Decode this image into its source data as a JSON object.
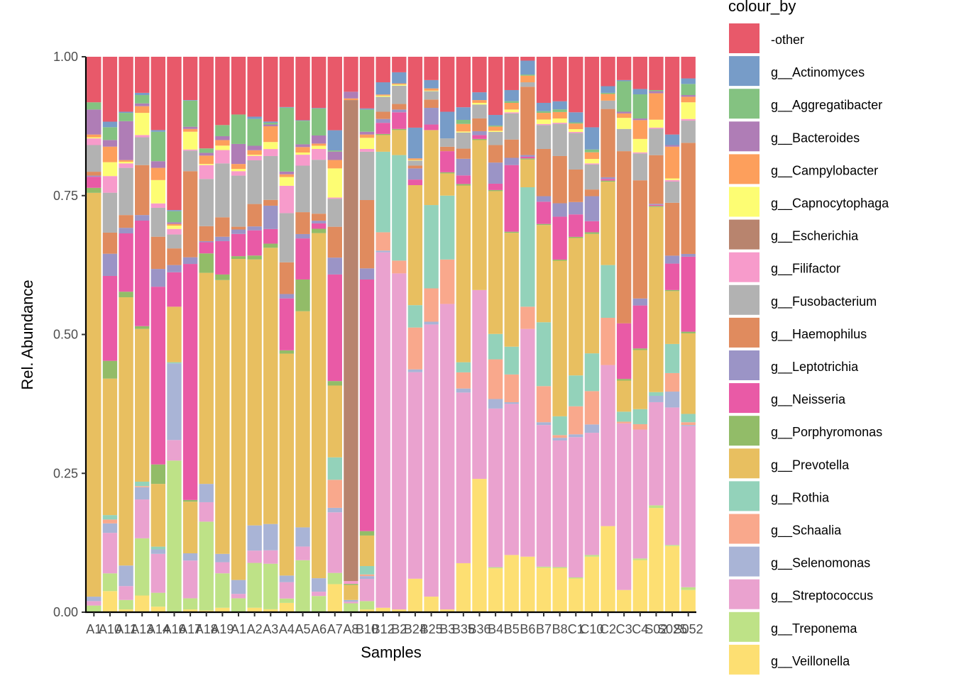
{
  "chart_data": {
    "type": "bar",
    "stacked": true,
    "xlabel": "Samples",
    "ylabel": "Rel. Abundance",
    "ylim": [
      0,
      1
    ],
    "yticks": [
      "0.00",
      "0.25",
      "0.50",
      "0.75",
      "1.00"
    ],
    "ytick_values": [
      0,
      0.25,
      0.5,
      0.75,
      1.0
    ],
    "legend": {
      "title": "colour_by",
      "placement": "right",
      "entries": [
        {
          "key": "O",
          "label": "-other",
          "color": "#E8596A"
        },
        {
          "key": "Ac",
          "label": "g__Actinomyces",
          "color": "#779CC8"
        },
        {
          "key": "Ag",
          "label": "g__Aggregatibacter",
          "color": "#84C281"
        },
        {
          "key": "B",
          "label": "g__Bacteroides",
          "color": "#AF7DB6"
        },
        {
          "key": "Cp",
          "label": "g__Campylobacter",
          "color": "#FD9F5C"
        },
        {
          "key": "Ca",
          "label": "g__Capnocytophaga",
          "color": "#FDFD73"
        },
        {
          "key": "E",
          "label": "g__Escherichia",
          "color": "#B8846E"
        },
        {
          "key": "Fi",
          "label": "g__Filifactor",
          "color": "#F79BCB"
        },
        {
          "key": "F",
          "label": "g__Fusobacterium",
          "color": "#B2B2B2"
        },
        {
          "key": "H",
          "label": "g__Haemophilus",
          "color": "#E08B5E"
        },
        {
          "key": "L",
          "label": "g__Leptotrichia",
          "color": "#9B94C6"
        },
        {
          "key": "N",
          "label": "g__Neisseria",
          "color": "#E95AA6"
        },
        {
          "key": "Po",
          "label": "g__Porphyromonas",
          "color": "#92BC68"
        },
        {
          "key": "P",
          "label": "g__Prevotella",
          "color": "#E8BF60"
        },
        {
          "key": "R",
          "label": "g__Rothia",
          "color": "#93D2BA"
        },
        {
          "key": "Sc",
          "label": "g__Schaalia",
          "color": "#F9A88C"
        },
        {
          "key": "Se",
          "label": "g__Selenomonas",
          "color": "#A9B4D6"
        },
        {
          "key": "St",
          "label": "g__Streptococcus",
          "color": "#EAA2CF"
        },
        {
          "key": "T",
          "label": "g__Treponema",
          "color": "#BEE287"
        },
        {
          "key": "V",
          "label": "g__Veillonella",
          "color": "#FDDF72"
        }
      ]
    },
    "stack_order_bottom_to_top": [
      "V",
      "T",
      "St",
      "Se",
      "Sc",
      "R",
      "P",
      "Po",
      "N",
      "L",
      "H",
      "F",
      "Fi",
      "E",
      "Ca",
      "Cp",
      "B",
      "Ag",
      "Ac",
      "O"
    ],
    "categories": [
      "A1",
      "A10",
      "A11",
      "A13",
      "A14",
      "A16",
      "A17",
      "A18",
      "A19",
      "A1",
      "A2",
      "A3",
      "A4",
      "A5",
      "A6",
      "A7",
      "A8",
      "B10",
      "B12",
      "B2",
      "B24",
      "B25",
      "B3",
      "B35",
      "B36",
      "B4",
      "B5",
      "B6",
      "B7",
      "B8",
      "C1",
      "C10",
      "C2",
      "C3",
      "C4",
      "S02",
      "S025",
      "S052"
    ],
    "series_values": [
      {
        "V": 0,
        "T": 0.012,
        "St": 0.008,
        "Se": 0.008,
        "Sc": 0,
        "R": 0,
        "P": 0.727,
        "Po": 0.009,
        "N": 0.02,
        "L": 0.002,
        "H": 0.007,
        "F": 0.048,
        "Fi": 0.012,
        "E": 0,
        "Ca": 0.002,
        "Cp": 0.005,
        "B": 0.045,
        "Ag": 0.013,
        "Ac": 0,
        "O": 0.082
      },
      {
        "V": 0.038,
        "T": 0.032,
        "St": 0.073,
        "Se": 0.017,
        "Sc": 0.007,
        "R": 0.008,
        "P": 0.246,
        "Po": 0.032,
        "N": 0.153,
        "L": 0.04,
        "H": 0.038,
        "F": 0.072,
        "Fi": 0.03,
        "E": 0,
        "Ca": 0.025,
        "Cp": 0.028,
        "B": 0.012,
        "Ag": 0.023,
        "Ac": 0.01,
        "O": 0.117
      },
      {
        "V": 0.005,
        "T": 0.017,
        "St": 0.025,
        "Se": 0.037,
        "Sc": 0,
        "R": 0,
        "P": 0.483,
        "Po": 0.01,
        "N": 0.105,
        "L": 0.01,
        "H": 0.023,
        "F": 0.085,
        "Fi": 0.008,
        "E": 0,
        "Ca": 0.003,
        "Cp": 0.003,
        "B": 0.07,
        "Ag": 0.015,
        "Ac": 0.002,
        "O": 0.099
      },
      {
        "V": 0.03,
        "T": 0.103,
        "St": 0.07,
        "Se": 0.022,
        "Sc": 0.002,
        "R": 0.008,
        "P": 0.275,
        "Po": 0.005,
        "N": 0.19,
        "L": 0.01,
        "H": 0.09,
        "F": 0.05,
        "Fi": 0.004,
        "E": 0,
        "Ca": 0.04,
        "Cp": 0.012,
        "B": 0.005,
        "Ag": 0.015,
        "Ac": 0.004,
        "O": 0.065
      },
      {
        "V": 0.01,
        "T": 0.025,
        "St": 0.07,
        "Se": 0.008,
        "Sc": 0,
        "R": 0.005,
        "P": 0.113,
        "Po": 0.035,
        "N": 0.32,
        "L": 0.032,
        "H": 0.058,
        "F": 0.052,
        "Fi": 0.008,
        "E": 0,
        "Ca": 0.042,
        "Cp": 0.022,
        "B": 0.012,
        "Ag": 0.053,
        "Ac": 0.003,
        "O": 0.132
      },
      {
        "V": 0,
        "T": 0.273,
        "St": 0.037,
        "Se": 0.138,
        "Sc": 0,
        "R": 0.002,
        "P": 0.1,
        "Po": 0,
        "N": 0.062,
        "L": 0.013,
        "H": 0.03,
        "F": 0.025,
        "Fi": 0.01,
        "E": 0,
        "Ca": 0.006,
        "Cp": 0.003,
        "B": 0.003,
        "Ag": 0.02,
        "Ac": 0.002,
        "O": 0.276
      },
      {
        "V": 0.005,
        "T": 0.02,
        "St": 0.068,
        "Se": 0.013,
        "Sc": 0,
        "R": 0,
        "P": 0.093,
        "Po": 0.003,
        "N": 0.425,
        "L": 0.012,
        "H": 0.155,
        "F": 0.037,
        "Fi": 0.002,
        "E": 0,
        "Ca": 0.032,
        "Cp": 0.005,
        "B": 0.004,
        "Ag": 0.047,
        "Ac": 0.001,
        "O": 0.078
      },
      {
        "V": 0.003,
        "T": 0.16,
        "St": 0.035,
        "Se": 0.033,
        "Sc": 0,
        "R": 0,
        "P": 0.38,
        "Po": 0.035,
        "N": 0.02,
        "L": 0.002,
        "H": 0.027,
        "F": 0.085,
        "Fi": 0.025,
        "E": 0,
        "Ca": 0.002,
        "Cp": 0.015,
        "B": 0.005,
        "Ag": 0.008,
        "Ac": 0,
        "O": 0.165
      },
      {
        "V": 0.008,
        "T": 0.062,
        "St": 0.02,
        "Se": 0.015,
        "Sc": 0,
        "R": 0,
        "P": 0.493,
        "Po": 0.01,
        "N": 0.06,
        "L": 0.008,
        "H": 0.035,
        "F": 0.097,
        "Fi": 0.024,
        "E": 0,
        "Ca": 0.008,
        "Cp": 0.01,
        "B": 0.007,
        "Ag": 0.02,
        "Ac": 0,
        "O": 0.123
      },
      {
        "V": 0,
        "T": 0.025,
        "St": 0.008,
        "Se": 0.025,
        "Sc": 0,
        "R": 0,
        "P": 0.578,
        "Po": 0.005,
        "N": 0.04,
        "L": 0.008,
        "H": 0.005,
        "F": 0.092,
        "Fi": 0.008,
        "E": 0,
        "Ca": 0.004,
        "Cp": 0.009,
        "B": 0.036,
        "Ag": 0.053,
        "Ac": 0,
        "O": 0.104
      },
      {
        "V": 0.008,
        "T": 0.08,
        "St": 0.022,
        "Se": 0.045,
        "Sc": 0,
        "R": 0,
        "P": 0.475,
        "Po": 0.007,
        "N": 0.045,
        "L": 0.007,
        "H": 0.04,
        "F": 0.078,
        "Fi": 0.008,
        "E": 0,
        "Ca": 0.002,
        "Cp": 0.008,
        "B": 0.008,
        "Ag": 0.048,
        "Ac": 0.004,
        "O": 0.107
      },
      {
        "V": 0.005,
        "T": 0.078,
        "St": 0.023,
        "Se": 0.045,
        "Sc": 0,
        "R": 0,
        "P": 0.473,
        "Po": 0.007,
        "N": 0.025,
        "L": 0.04,
        "H": 0.01,
        "F": 0.075,
        "Fi": 0.012,
        "E": 0,
        "Ca": 0.012,
        "Cp": 0.027,
        "B": 0.003,
        "Ag": 0.003,
        "Ac": 0.002,
        "O": 0.111
      },
      {
        "V": 0.017,
        "T": 0.008,
        "St": 0.03,
        "Se": 0.012,
        "Sc": 0,
        "R": 0,
        "P": 0.406,
        "Po": 0.006,
        "N": 0.095,
        "L": 0.008,
        "H": 0.058,
        "F": 0.09,
        "Fi": 0.05,
        "E": 0,
        "Ca": 0.016,
        "Cp": 0.005,
        "B": 0.005,
        "Ag": 0.117,
        "Ac": 0.001,
        "O": 0.092
      },
      {
        "V": 0,
        "T": 0.095,
        "St": 0.025,
        "Se": 0.035,
        "Sc": 0,
        "R": 0,
        "P": 0.395,
        "Po": 0.058,
        "N": 0.075,
        "L": 0.008,
        "H": 0.04,
        "F": 0.085,
        "Fi": 0.02,
        "E": 0,
        "Ca": 0.004,
        "Cp": 0.01,
        "B": 0.005,
        "Ag": 0.043,
        "Ac": 0.001,
        "O": 0.116
      },
      {
        "V": 0,
        "T": 0.03,
        "St": 0.008,
        "Se": 0.025,
        "Sc": 0,
        "R": 0,
        "P": 0.64,
        "Po": 0.008,
        "N": 0.01,
        "L": 0.005,
        "H": 0.013,
        "F": 0.1,
        "Fi": 0.02,
        "E": 0,
        "Ca": 0.006,
        "Cp": 0.004,
        "B": 0.015,
        "Ag": 0.05,
        "Ac": 0.001,
        "O": 0.095
      },
      {
        "V": 0.05,
        "T": 0.02,
        "St": 0.108,
        "Se": 0.008,
        "Sc": 0.05,
        "R": 0.04,
        "P": 0.128,
        "Po": 0.008,
        "N": 0.19,
        "L": 0.03,
        "H": 0.055,
        "F": 0.05,
        "Fi": 0.002,
        "E": 0,
        "Ca": 0.052,
        "Cp": 0.015,
        "B": 0.015,
        "Ag": 0.002,
        "Ac": 0.036,
        "O": 0.131
      },
      {
        "V": 0,
        "T": 0.016,
        "St": 0.003,
        "Se": 0.003,
        "Sc": 0,
        "R": 0,
        "P": 0.027,
        "Po": 0.002,
        "N": 0,
        "L": 0,
        "H": 0,
        "F": 0,
        "Fi": 0.005,
        "E": 0.866,
        "Ca": 0,
        "Cp": 0.003,
        "B": 0.012,
        "Ag": 0,
        "Ac": 0,
        "O": 0.063
      },
      {
        "V": 0.005,
        "T": 0.015,
        "St": 0.04,
        "Se": 0.005,
        "Sc": 0.003,
        "R": 0.015,
        "P": 0.055,
        "Po": 0.008,
        "N": 0.453,
        "L": 0.02,
        "H": 0.123,
        "F": 0.087,
        "Fi": 0.005,
        "E": 0,
        "Ca": 0.02,
        "Cp": 0.006,
        "B": 0.005,
        "Ag": 0.04,
        "Ac": 0.002,
        "O": 0.093
      },
      {
        "V": 0.008,
        "T": 0,
        "St": 0.64,
        "Se": 0.003,
        "Sc": 0.033,
        "R": 0.145,
        "P": 0.03,
        "Po": 0.002,
        "N": 0.02,
        "L": 0.007,
        "H": 0.013,
        "F": 0.027,
        "Fi": 0,
        "E": 0,
        "Ca": 0.002,
        "Cp": 0.002,
        "B": 0,
        "Ag": 0,
        "Ac": 0.022,
        "O": 0.046
      },
      {
        "V": 0.005,
        "T": 0,
        "St": 0.605,
        "Se": 0,
        "Sc": 0.023,
        "R": 0.19,
        "P": 0.045,
        "Po": 0.002,
        "N": 0.03,
        "L": 0.005,
        "H": 0.01,
        "F": 0.033,
        "Fi": 0,
        "E": 0,
        "Ca": 0.002,
        "Cp": 0.002,
        "B": 0,
        "Ag": 0,
        "Ac": 0.02,
        "O": 0.028
      },
      {
        "V": 0.06,
        "T": 0,
        "St": 0.37,
        "Se": 0.005,
        "Sc": 0.075,
        "R": 0.04,
        "P": 0.215,
        "Po": 0,
        "N": 0.01,
        "L": 0.02,
        "H": 0.005,
        "F": 0.009,
        "Fi": 0,
        "E": 0,
        "Ca": 0.001,
        "Cp": 0.003,
        "B": 0,
        "Ag": 0,
        "Ac": 0.055,
        "O": 0.127
      },
      {
        "V": 0.028,
        "T": 0,
        "St": 0.49,
        "Se": 0.005,
        "Sc": 0.06,
        "R": 0.15,
        "P": 0.135,
        "Po": 0,
        "N": 0.01,
        "L": 0.03,
        "H": 0.015,
        "F": 0.015,
        "Fi": 0,
        "E": 0,
        "Ca": 0.001,
        "Cp": 0.004,
        "B": 0,
        "Ag": 0,
        "Ac": 0.015,
        "O": 0.042
      },
      {
        "V": 0.005,
        "T": 0,
        "St": 0.55,
        "Se": 0,
        "Sc": 0.08,
        "R": 0.115,
        "P": 0.04,
        "Po": 0.002,
        "N": 0.038,
        "L": 0,
        "H": 0.008,
        "F": 0.015,
        "Fi": 0,
        "E": 0,
        "Ca": 0,
        "Cp": 0,
        "B": 0,
        "Ag": 0,
        "Ac": 0.048,
        "O": 0.099
      },
      {
        "V": 0.097,
        "T": 0,
        "St": 0.338,
        "Se": 0.008,
        "Sc": 0.032,
        "R": 0.02,
        "P": 0.35,
        "Po": 0.003,
        "N": 0.017,
        "L": 0.033,
        "H": 0.02,
        "F": 0.032,
        "Fi": 0,
        "E": 0,
        "Ca": 0.002,
        "Cp": 0.015,
        "B": 0,
        "Ag": 0.008,
        "Ac": 0.025,
        "O": 0.1
      },
      {
        "V": 0.24,
        "T": 0,
        "St": 0.34,
        "Se": 0,
        "Sc": 0,
        "R": 0,
        "P": 0.27,
        "Po": 0.002,
        "N": 0.007,
        "L": 0.007,
        "H": 0.023,
        "F": 0.025,
        "Fi": 0,
        "E": 0,
        "Ca": 0.003,
        "Cp": 0.005,
        "B": 0,
        "Ag": 0,
        "Ac": 0.014,
        "O": 0.064
      },
      {
        "V": 0.083,
        "T": 0.002,
        "St": 0.3,
        "Se": 0.018,
        "Sc": 0.075,
        "R": 0.048,
        "P": 0.27,
        "Po": 0.002,
        "N": 0.012,
        "L": 0.04,
        "H": 0.033,
        "F": 0.025,
        "Fi": 0,
        "E": 0,
        "Ca": 0.002,
        "Cp": 0.008,
        "B": 0,
        "Ag": 0.002,
        "Ac": 0.02,
        "O": 0.11
      },
      {
        "V": 0.103,
        "T": 0,
        "St": 0.272,
        "Se": 0.003,
        "Sc": 0.05,
        "R": 0.05,
        "P": 0.205,
        "Po": 0.002,
        "N": 0.12,
        "L": 0.013,
        "H": 0.033,
        "F": 0.047,
        "Fi": 0.002,
        "E": 0,
        "Ca": 0.005,
        "Cp": 0.012,
        "B": 0,
        "Ag": 0.003,
        "Ac": 0.02,
        "O": 0.06
      },
      {
        "V": 0.1,
        "T": 0,
        "St": 0.41,
        "Se": 0,
        "Sc": 0.04,
        "R": 0.215,
        "P": 0.05,
        "Po": 0.002,
        "N": 0.003,
        "L": 0.003,
        "H": 0.123,
        "F": 0.008,
        "Fi": 0,
        "E": 0,
        "Ca": 0,
        "Cp": 0.012,
        "B": 0,
        "Ag": 0.002,
        "Ac": 0.025,
        "O": 0.007
      },
      {
        "V": 0.08,
        "T": 0.002,
        "St": 0.255,
        "Se": 0.005,
        "Sc": 0.065,
        "R": 0.115,
        "P": 0.175,
        "Po": 0.002,
        "N": 0.04,
        "L": 0.01,
        "H": 0.085,
        "F": 0.043,
        "Fi": 0.002,
        "E": 0,
        "Ca": 0.008,
        "Cp": 0.012,
        "B": 0,
        "Ag": 0.003,
        "Ac": 0.015,
        "O": 0.083
      },
      {
        "V": 0.082,
        "T": 0.002,
        "St": 0.236,
        "Se": 0.005,
        "Sc": 0.005,
        "R": 0.035,
        "P": 0.29,
        "Po": 0.002,
        "N": 0.08,
        "L": 0.025,
        "H": 0.088,
        "F": 0.06,
        "Fi": 0.002,
        "E": 0,
        "Ca": 0.008,
        "Cp": 0.012,
        "B": 0,
        "Ag": 0.005,
        "Ac": 0.015,
        "O": 0.083
      },
      {
        "V": 0.06,
        "T": 0.002,
        "St": 0.25,
        "Se": 0.005,
        "Sc": 0.05,
        "R": 0.055,
        "P": 0.245,
        "Po": 0.002,
        "N": 0.04,
        "L": 0.022,
        "H": 0.058,
        "F": 0.065,
        "Fi": 0.002,
        "E": 0,
        "Ca": 0.005,
        "Cp": 0.01,
        "B": 0,
        "Ag": 0.002,
        "Ac": 0.018,
        "O": 0.099
      },
      {
        "V": 0.1,
        "T": 0.003,
        "St": 0.22,
        "Se": 0.015,
        "Sc": 0.06,
        "R": 0.068,
        "P": 0.215,
        "Po": 0.003,
        "N": 0.02,
        "L": 0.045,
        "H": 0.012,
        "F": 0.045,
        "Fi": 0.002,
        "E": 0,
        "Ca": 0.008,
        "Cp": 0.012,
        "B": 0,
        "Ag": 0.005,
        "Ac": 0.04,
        "O": 0.127
      },
      {
        "V": 0.155,
        "T": 0,
        "St": 0.29,
        "Se": 0,
        "Sc": 0.085,
        "R": 0.095,
        "P": 0.15,
        "Po": 0.002,
        "N": 0.003,
        "L": 0.003,
        "H": 0.123,
        "F": 0.015,
        "Fi": 0,
        "E": 0,
        "Ca": 0,
        "Cp": 0.012,
        "B": 0,
        "Ag": 0.002,
        "Ac": 0.012,
        "O": 0.053
      },
      {
        "V": 0.04,
        "T": 0,
        "St": 0.3,
        "Se": 0,
        "Sc": 0.003,
        "R": 0.018,
        "P": 0.056,
        "Po": 0.003,
        "N": 0.1,
        "L": 0,
        "H": 0.31,
        "F": 0.04,
        "Fi": 0,
        "E": 0,
        "Ca": 0.02,
        "Cp": 0.008,
        "B": 0.003,
        "Ag": 0.055,
        "Ac": 0.002,
        "O": 0.042
      },
      {
        "V": 0.097,
        "T": 0.003,
        "St": 0.24,
        "Se": 0,
        "Sc": 0.01,
        "R": 0.028,
        "P": 0.11,
        "Po": 0.003,
        "N": 0.08,
        "L": 0.013,
        "H": 0.22,
        "F": 0.05,
        "Fi": 0.002,
        "E": 0,
        "Ca": 0.025,
        "Cp": 0.035,
        "B": 0.003,
        "Ag": 0.045,
        "Ac": 0.01,
        "O": 0.06
      },
      {
        "V": 0.197,
        "T": 0.005,
        "St": 0.195,
        "Se": 0.012,
        "Sc": 0,
        "R": 0.007,
        "P": 0.35,
        "Po": 0.002,
        "N": 0.002,
        "L": 0.002,
        "H": 0.092,
        "F": 0.05,
        "Fi": 0.002,
        "E": 0,
        "Ca": 0.015,
        "Cp": 0.05,
        "B": 0.004,
        "Ag": 0.002,
        "Ac": 0,
        "O": 0.063
      },
      {
        "V": 0.125,
        "T": 0.002,
        "St": 0.26,
        "Se": 0.03,
        "Sc": 0.035,
        "R": 0.055,
        "P": 0.1,
        "Po": 0.002,
        "N": 0.05,
        "L": 0.015,
        "H": 0.1,
        "F": 0.04,
        "Fi": 0.003,
        "E": 0,
        "Ca": 0.003,
        "Cp": 0.06,
        "B": 0.003,
        "Ag": 0,
        "Ac": 0.02,
        "O": 0.147
      },
      {
        "V": 0.04,
        "T": 0.005,
        "St": 0.29,
        "Se": 0.002,
        "Sc": 0.005,
        "R": 0.015,
        "P": 0.145,
        "Po": 0.003,
        "N": 0.135,
        "L": 0.005,
        "H": 0.2,
        "F": 0.04,
        "Fi": 0.003,
        "E": 0,
        "Ca": 0.03,
        "Cp": 0.01,
        "B": 0.003,
        "Ag": 0.02,
        "Ac": 0.01,
        "O": 0.039
      }
    ]
  }
}
